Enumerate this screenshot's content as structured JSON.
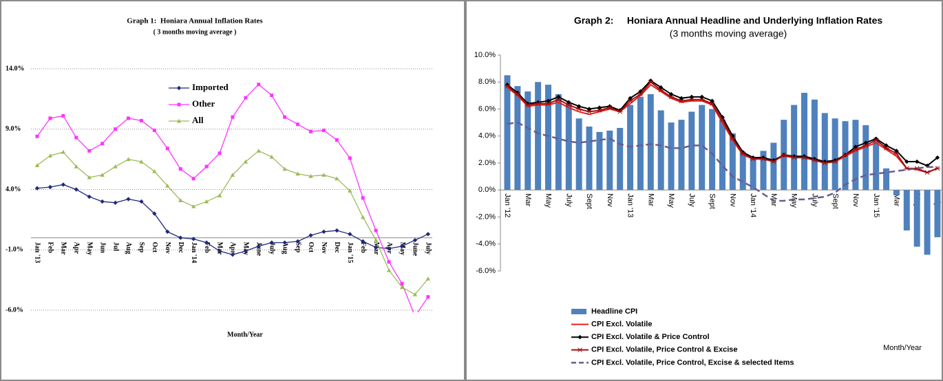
{
  "chart_data": [
    {
      "type": "line",
      "title": "Graph 1:  Honiara Annual Inflation Rates",
      "subtitle": "( 3 months moving average )",
      "x_label": "Month/Year",
      "categories": [
        "Jan '13",
        "Feb",
        "Mar",
        "Apr",
        "May",
        "Jun",
        "Jul",
        "Aug",
        "Sep",
        "Oct",
        "Nov",
        "Dec",
        "Jan '14",
        "Feb",
        "Mar",
        "Apr",
        "May",
        "June",
        "July",
        "Aug",
        "Sep",
        "Oct",
        "Nov",
        "Dec",
        "Jan '15",
        "Feb",
        "Mar",
        "Apr",
        "May",
        "June",
        "July"
      ],
      "series": [
        {
          "name": "Imported",
          "color": "#1f2a7a",
          "marker": "diamond",
          "values": [
            4.1,
            4.2,
            4.4,
            4.0,
            3.4,
            3.0,
            2.9,
            3.2,
            3.0,
            2.0,
            0.5,
            0.0,
            -0.1,
            -0.4,
            -1.1,
            -1.4,
            -1.1,
            -0.7,
            -0.4,
            -0.4,
            -0.3,
            0.2,
            0.5,
            0.6,
            0.3,
            -0.3,
            -0.8,
            -0.9,
            -0.7,
            -0.2,
            0.3
          ]
        },
        {
          "name": "Other",
          "color": "#ff33ff",
          "marker": "square",
          "values": [
            8.4,
            9.9,
            10.1,
            8.3,
            7.2,
            7.8,
            9.0,
            9.9,
            9.7,
            8.9,
            7.4,
            5.7,
            4.9,
            5.9,
            7.0,
            10.0,
            11.6,
            12.7,
            11.8,
            10.0,
            9.4,
            8.8,
            8.9,
            8.1,
            6.6,
            3.3,
            0.6,
            -2.0,
            -3.8,
            -6.5,
            -4.9
          ]
        },
        {
          "name": "All",
          "color": "#9bbb59",
          "marker": "triangle",
          "values": [
            6.0,
            6.8,
            7.1,
            5.9,
            5.0,
            5.2,
            5.9,
            6.5,
            6.3,
            5.5,
            4.3,
            3.1,
            2.6,
            3.0,
            3.5,
            5.2,
            6.3,
            7.2,
            6.7,
            5.7,
            5.3,
            5.1,
            5.2,
            4.9,
            3.9,
            1.7,
            -0.2,
            -2.7,
            -4.1,
            -4.7,
            -3.4
          ]
        }
      ],
      "ylim": [
        -6,
        14
      ],
      "yticks": [
        {
          "value": 14,
          "label": "14.0%"
        },
        {
          "value": 9,
          "label": "9.0%"
        },
        {
          "value": 4,
          "label": "4.0%"
        },
        {
          "value": -1,
          "label": "-1.0%"
        },
        {
          "value": -6,
          "label": "-6.0%"
        }
      ],
      "grid": true,
      "legend": "upper center"
    },
    {
      "type": "bar",
      "title": "Graph 2:     Honiara Annual Headline and Underlying Inflation Rates",
      "subtitle": "(3 months moving average)",
      "x_label": "Month/Year",
      "categories": [
        "Jan '12",
        null,
        "Mar",
        null,
        "May",
        null,
        "July",
        null,
        "Sept",
        null,
        "Nov",
        null,
        "Jan '13",
        null,
        "Mar",
        null,
        "May",
        null,
        "July",
        null,
        "Sept",
        null,
        "Nov",
        null,
        "Jan '14",
        null,
        "Mar",
        null,
        "May",
        null,
        "July",
        null,
        "Sept",
        null,
        "Nov",
        null,
        "Jan '15",
        null,
        "Mar",
        null,
        "May",
        null,
        "July"
      ],
      "series": [
        {
          "name": "Headline CPI",
          "type": "bar",
          "color": "#4f81bd",
          "values": [
            8.5,
            7.7,
            7.3,
            8.0,
            7.8,
            7.1,
            6.4,
            5.3,
            4.7,
            4.3,
            4.4,
            4.6,
            6.3,
            6.9,
            7.1,
            5.9,
            5.0,
            5.2,
            5.8,
            6.3,
            6.0,
            5.2,
            4.2,
            2.8,
            2.4,
            2.9,
            3.5,
            5.2,
            6.3,
            7.2,
            6.7,
            5.7,
            5.3,
            5.1,
            5.2,
            4.8,
            3.8,
            1.6,
            -0.4,
            -3.0,
            -4.2,
            -4.8,
            -3.5
          ]
        },
        {
          "name": "CPI Excl. Volatile",
          "type": "line",
          "color": "#e8201c",
          "marker": "none",
          "values": [
            7.6,
            7.0,
            6.2,
            6.3,
            6.3,
            6.5,
            6.1,
            5.8,
            5.6,
            5.8,
            6.0,
            5.8,
            6.4,
            7.0,
            7.8,
            7.3,
            6.8,
            6.5,
            6.6,
            6.6,
            6.3,
            5.0,
            3.7,
            2.6,
            2.3,
            2.3,
            2.2,
            2.5,
            2.4,
            2.4,
            2.2,
            2.0,
            2.1,
            2.5,
            2.9,
            3.2,
            3.5,
            3.0,
            2.5,
            1.6,
            1.5,
            1.3,
            1.6
          ]
        },
        {
          "name": "CPI Excl. Volatile & Price Control",
          "type": "line",
          "color": "#000000",
          "marker": "diamond",
          "values": [
            7.8,
            7.2,
            6.4,
            6.5,
            6.6,
            6.9,
            6.5,
            6.2,
            6.0,
            6.1,
            6.2,
            5.9,
            6.8,
            7.3,
            8.1,
            7.6,
            7.1,
            6.8,
            6.9,
            6.9,
            6.6,
            5.4,
            4.0,
            2.8,
            2.4,
            2.4,
            2.2,
            2.6,
            2.5,
            2.5,
            2.3,
            2.1,
            2.2,
            2.6,
            3.2,
            3.5,
            3.8,
            3.3,
            2.9,
            2.1,
            2.1,
            1.8,
            2.4
          ]
        },
        {
          "name": "CPI Excl. Volatile, Price Control & Excise",
          "type": "line",
          "color": "#a01010",
          "marker": "star",
          "values": [
            7.7,
            7.1,
            6.3,
            6.4,
            6.4,
            6.7,
            6.3,
            6.0,
            5.8,
            5.9,
            6.1,
            5.8,
            6.6,
            7.1,
            8.0,
            7.4,
            6.9,
            6.6,
            6.7,
            6.7,
            6.4,
            5.2,
            3.8,
            2.7,
            2.3,
            2.3,
            2.1,
            2.6,
            2.4,
            2.4,
            2.2,
            2.0,
            2.1,
            2.6,
            3.0,
            3.3,
            3.7,
            3.1,
            2.7,
            1.6,
            1.6,
            1.3,
            1.6
          ]
        },
        {
          "name": "CPI Excl. Volatile, Price Control, Excise & selected Items",
          "type": "line",
          "color": "#6b5a8c",
          "marker": "none",
          "dash": true,
          "values": [
            4.9,
            5.0,
            4.6,
            4.2,
            4.0,
            3.8,
            3.6,
            3.5,
            3.6,
            3.7,
            3.8,
            3.4,
            3.2,
            3.3,
            3.4,
            3.3,
            3.1,
            3.1,
            3.3,
            3.3,
            2.7,
            1.8,
            1.0,
            0.6,
            0.2,
            -0.3,
            -0.8,
            -0.8,
            -0.7,
            -0.7,
            -0.6,
            -0.5,
            -0.2,
            0.4,
            0.8,
            1.1,
            1.2,
            1.3,
            1.4,
            1.5,
            1.6,
            1.7,
            1.7
          ]
        }
      ],
      "ylim": [
        -6,
        10
      ],
      "yticks": [
        {
          "value": 10,
          "label": "10.0%"
        },
        {
          "value": 8,
          "label": "8.0%"
        },
        {
          "value": 6,
          "label": "6.0%"
        },
        {
          "value": 4,
          "label": "4.0%"
        },
        {
          "value": 2,
          "label": "2.0%"
        },
        {
          "value": 0,
          "label": "0.0%"
        },
        {
          "value": -2,
          "label": "-2.0%"
        },
        {
          "value": -4,
          "label": "-4.0%"
        },
        {
          "value": -6,
          "label": "-6.0%"
        }
      ],
      "grid": false,
      "legend": "bottom"
    }
  ]
}
